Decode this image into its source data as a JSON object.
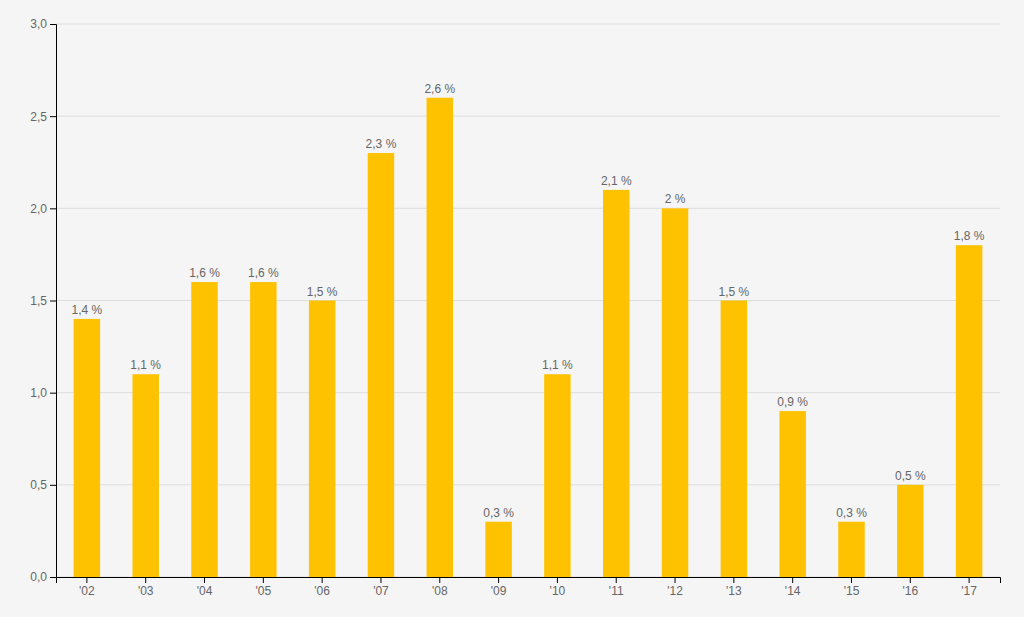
{
  "chart_data": {
    "type": "bar",
    "categories": [
      "'02",
      "'03",
      "'04",
      "'05",
      "'06",
      "'07",
      "'08",
      "'09",
      "'10",
      "'11",
      "'12",
      "'13",
      "'14",
      "'15",
      "'16",
      "'17"
    ],
    "values": [
      1.4,
      1.1,
      1.6,
      1.6,
      1.5,
      2.3,
      2.6,
      0.3,
      1.1,
      2.1,
      2.0,
      1.5,
      0.9,
      0.3,
      0.5,
      1.8
    ],
    "value_labels": [
      "1,4 %",
      "1,1 %",
      "1,6 %",
      "1,6 %",
      "1,5 %",
      "2,3 %",
      "2,6 %",
      "0,3 %",
      "1,1 %",
      "2,1 %",
      "2 %",
      "1,5 %",
      "0,9 %",
      "0,3 %",
      "0,5 %",
      "1,8 %"
    ],
    "data_labels": true,
    "color": "#FFC200",
    "ylim": [
      0,
      3.0
    ],
    "yticks": [
      {
        "value": 0.0,
        "label": "0,0"
      },
      {
        "value": 0.5,
        "label": "0,5"
      },
      {
        "value": 1.0,
        "label": "1,0"
      },
      {
        "value": 1.5,
        "label": "1,5"
      },
      {
        "value": 2.0,
        "label": "2,0"
      },
      {
        "value": 2.5,
        "label": "2,5"
      },
      {
        "value": 3.0,
        "label": "3,0"
      }
    ],
    "grid": true
  }
}
